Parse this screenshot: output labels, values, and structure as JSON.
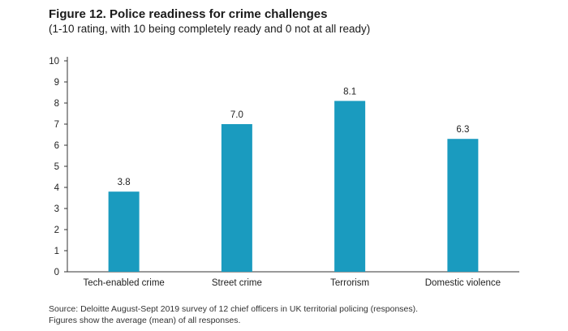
{
  "title": "Figure 12. Police readiness for crime challenges",
  "subtitle": "(1-10 rating, with 10 being completely ready and 0 not at all ready)",
  "source_line1": "Source: Deloitte August-Sept 2019 survey of 12 chief officers in UK territorial policing (responses).",
  "source_line2": "Figures show the average (mean) of all responses.",
  "chart_data": {
    "type": "bar",
    "categories": [
      "Tech-enabled crime",
      "Street crime",
      "Terrorism",
      "Domestic violence"
    ],
    "values": [
      3.8,
      7.0,
      8.1,
      6.3
    ],
    "data_labels": [
      "3.8",
      "7.0",
      "8.1",
      "6.3"
    ],
    "title": "Figure 12. Police readiness for crime challenges",
    "subtitle": "(1-10 rating, with 10 being completely ready and 0 not at all ready)",
    "xlabel": "",
    "ylabel": "",
    "ylim": [
      0,
      10
    ],
    "yticks": [
      0,
      1,
      2,
      3,
      4,
      5,
      6,
      7,
      8,
      9,
      10
    ],
    "grid": false,
    "bar_color": "#1a9bbf"
  }
}
